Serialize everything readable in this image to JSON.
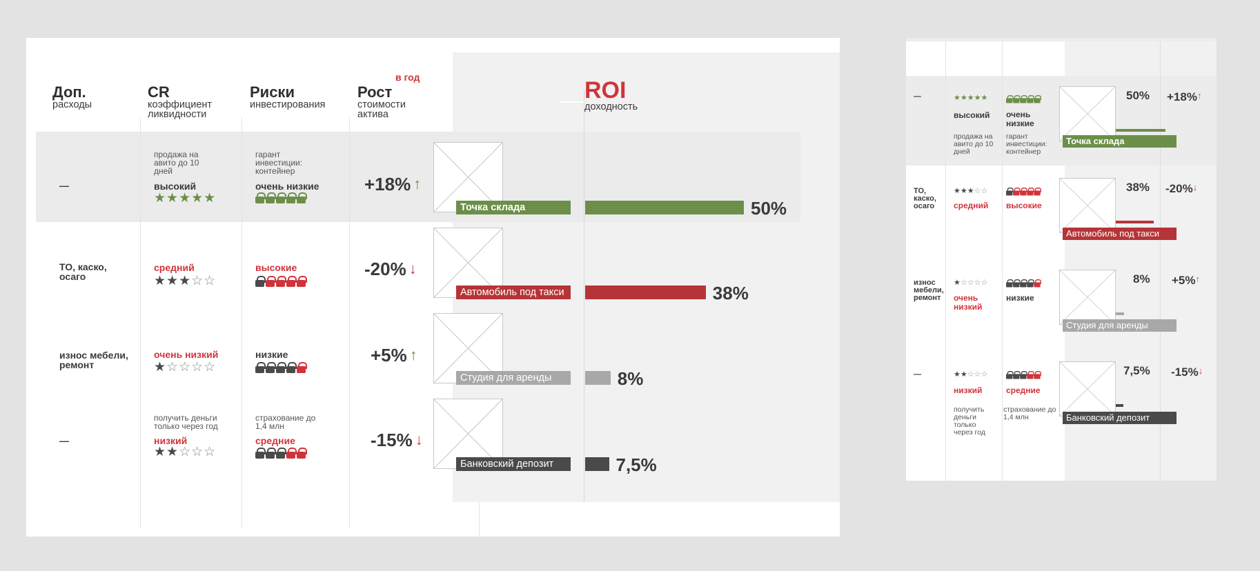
{
  "headers": {
    "expenses": {
      "title": "Доп.",
      "sub": "расходы"
    },
    "cr": {
      "title": "CR",
      "sub": "коэффициент ликвидности"
    },
    "risks": {
      "title": "Риски",
      "sub": "инвестирования"
    },
    "growth": {
      "title": "Рост",
      "sub": "стоимости актива",
      "note": "в год"
    },
    "roi": {
      "title": "ROI",
      "sub": "доходность"
    }
  },
  "rows": [
    {
      "expenses": "—",
      "cr_note": "продажа на авито до 10 дней",
      "cr_level": "высокий",
      "cr_stars": 5,
      "risk_note": "гарант инвестиции: контейнер",
      "risk_level": "очень низкие",
      "risk_locks": 0,
      "growth": "+18%",
      "direction": "up",
      "label": "Точка склада",
      "roi": 50,
      "roi_text": "50%",
      "color": "#6b8f48"
    },
    {
      "expenses": "ТО, каско, осаго",
      "cr_note": "",
      "cr_level": "средний",
      "cr_stars": 3,
      "risk_note": "",
      "risk_level": "высокие",
      "risk_locks": 4,
      "growth": "-20%",
      "direction": "down",
      "label": "Автомобиль под такси",
      "roi": 38,
      "roi_text": "38%",
      "color": "#b63437"
    },
    {
      "expenses": "износ мебели, ремонт",
      "cr_note": "",
      "cr_level": "очень низкий",
      "cr_stars": 1,
      "risk_note": "",
      "risk_level": "низкие",
      "risk_locks": 1,
      "growth": "+5%",
      "direction": "up",
      "label": "Студия для аренды",
      "roi": 8,
      "roi_text": "8%",
      "color": "#a8a8a8"
    },
    {
      "expenses": "—",
      "cr_note": "получить деньги только через год",
      "cr_level": "низкий",
      "cr_stars": 2,
      "risk_note": "страхование до 1,4 млн",
      "risk_level": "средние",
      "risk_locks": 2,
      "growth": "-15%",
      "direction": "down",
      "label": "Банковский депозит",
      "roi": 7.5,
      "roi_text": "7,5%",
      "color": "#4a4a4a"
    }
  ],
  "chart_data": {
    "type": "bar",
    "title": "ROI",
    "subtitle": "доходность",
    "categories": [
      "Точка склада",
      "Автомобиль под такси",
      "Студия для аренды",
      "Банковский депозит"
    ],
    "values": [
      50,
      38,
      8,
      7.5
    ],
    "value_labels": [
      "50%",
      "38%",
      "8%",
      "7,5%"
    ],
    "growth_per_year": [
      "+18%",
      "-20%",
      "+5%",
      "-15%"
    ],
    "colors": [
      "#6b8f48",
      "#b63437",
      "#a8a8a8",
      "#4a4a4a"
    ]
  }
}
